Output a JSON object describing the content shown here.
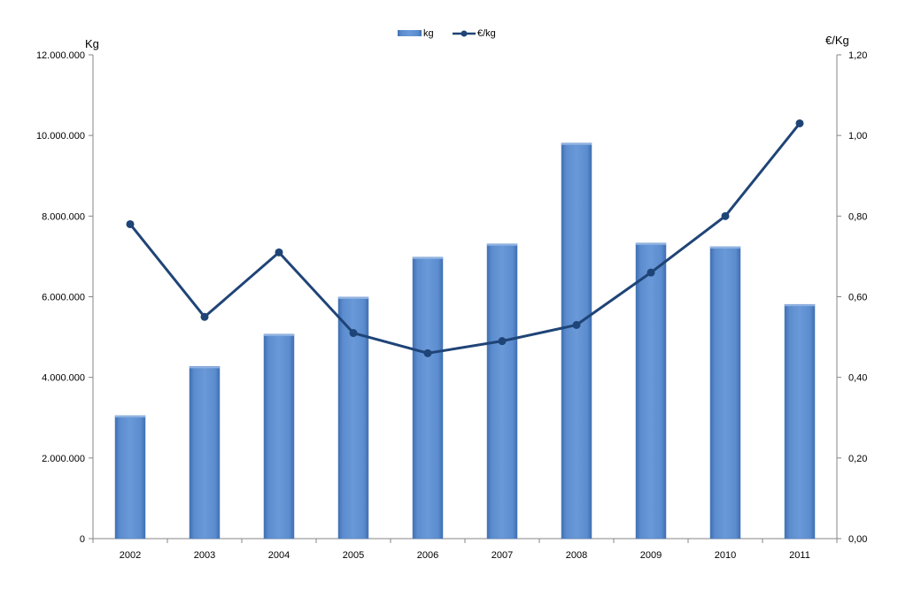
{
  "chart_data": {
    "type": "bar",
    "categories": [
      "2002",
      "2003",
      "2004",
      "2005",
      "2006",
      "2007",
      "2008",
      "2009",
      "2010",
      "2011"
    ],
    "series": [
      {
        "name": "kg",
        "type": "bar",
        "axis": "left",
        "values": [
          3050000,
          4270000,
          5070000,
          5990000,
          6980000,
          7310000,
          9810000,
          7330000,
          7240000,
          5810000
        ]
      },
      {
        "name": "€/kg",
        "type": "line",
        "axis": "right",
        "values": [
          0.78,
          0.55,
          0.71,
          0.51,
          0.46,
          0.49,
          0.53,
          0.66,
          0.8,
          1.03
        ]
      }
    ],
    "ylabel": "Kg",
    "y2label": "€/Kg",
    "ylim": [
      0,
      12000000
    ],
    "y2lim": [
      0,
      1.2
    ],
    "yticks": [
      "0",
      "2.000.000",
      "4.000.000",
      "6.000.000",
      "8.000.000",
      "10.000.000",
      "12.000.000"
    ],
    "y2ticks": [
      "0,00",
      "0,20",
      "0,40",
      "0,60",
      "0,80",
      "1,00",
      "1,20"
    ],
    "legend": "top-center",
    "grid": false,
    "colors": {
      "bar": "#5b8cce",
      "bar_dark": "#3c6aad",
      "line": "#1f4477"
    }
  }
}
